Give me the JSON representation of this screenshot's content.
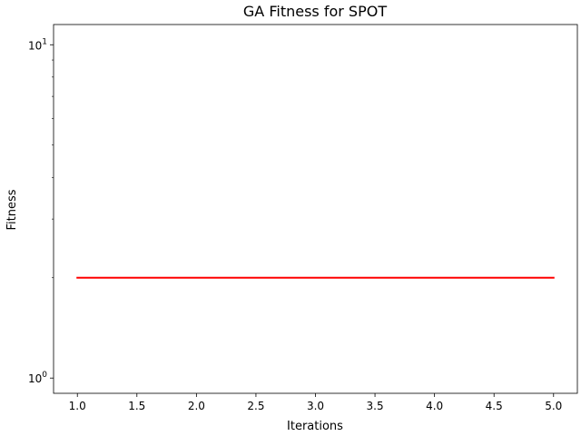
{
  "chart_data": {
    "type": "line",
    "title": "GA Fitness for SPOT",
    "xlabel": "Iterations",
    "ylabel": "Fitness",
    "xlim": [
      0.8,
      5.2
    ],
    "ylim": [
      0.9,
      11.5
    ],
    "yscale": "log",
    "grid": false,
    "x_ticks": [
      1.0,
      1.5,
      2.0,
      2.5,
      3.0,
      3.5,
      4.0,
      4.5,
      5.0
    ],
    "x_tick_labels": [
      "1.0",
      "1.5",
      "2.0",
      "2.5",
      "3.0",
      "3.5",
      "4.0",
      "4.5",
      "5.0"
    ],
    "y_major_ticks": [
      1,
      10
    ],
    "y_major_tick_labels": [
      {
        "base": "10",
        "exp": "0"
      },
      {
        "base": "10",
        "exp": "1"
      }
    ],
    "y_minor_ticks": [
      2,
      3,
      4,
      5,
      6,
      7,
      8,
      9
    ],
    "series": [
      {
        "color": "#ff0000",
        "x": [
          1,
          2,
          3,
          4,
          5
        ],
        "y": [
          2,
          2,
          2,
          2,
          2
        ]
      }
    ]
  }
}
